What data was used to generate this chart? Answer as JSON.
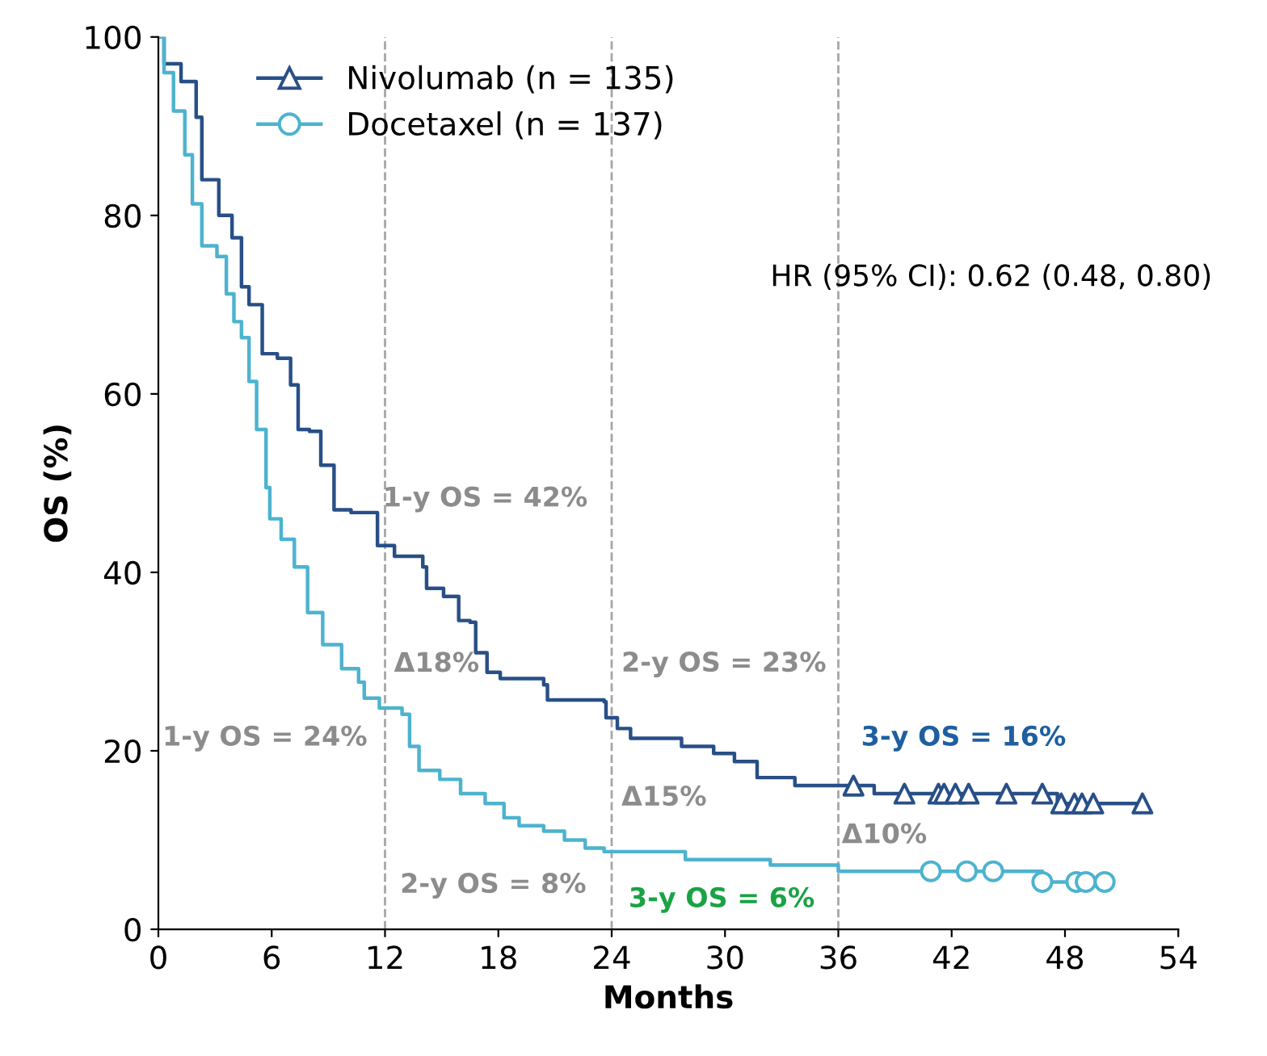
{
  "chart_data": {
    "type": "step",
    "xlabel": "Months",
    "ylabel": "OS (%)",
    "xlim": [
      0,
      54
    ],
    "xticks": [
      0,
      6,
      12,
      18,
      24,
      30,
      36,
      42,
      48,
      54
    ],
    "ylim": [
      0,
      100
    ],
    "yticks": [
      0,
      20,
      40,
      60,
      80,
      100
    ],
    "grid": false,
    "legend": "top left",
    "line_style": "solid",
    "series": [
      {
        "name": "Nivolumab (n = 135)",
        "color": "#284f87",
        "x": [
          0,
          0.3,
          1.2,
          2.0,
          2.3,
          3.2,
          3.9,
          4.4,
          4.8,
          5.5,
          6.3,
          7.0,
          7.4,
          8.0,
          8.6,
          9.3,
          10.2,
          11.6,
          12.5,
          14.0,
          14.2,
          15.1,
          15.9,
          16.5,
          16.8,
          17.4,
          18.1,
          20.4,
          20.6,
          23.6,
          23.7,
          24.3,
          25.0,
          27.7,
          29.4,
          30.5,
          31.7,
          33.7,
          37.9,
          47.6,
          52.2
        ],
        "values": [
          100,
          97,
          95,
          91,
          84,
          80,
          77.5,
          72,
          70,
          64.5,
          64,
          61,
          56,
          55.8,
          52,
          47,
          46.7,
          43,
          41.8,
          40.6,
          38.2,
          37.3,
          34.6,
          34.4,
          31,
          28.8,
          28.1,
          27.4,
          25.7,
          25.5,
          23.7,
          22.5,
          21.4,
          20.5,
          19.7,
          18.8,
          17,
          16.1,
          15.2,
          14.1,
          14.1
        ]
      },
      {
        "name": "Docetaxel (n = 137)",
        "color": "#4db3cf",
        "x": [
          0,
          0.3,
          0.8,
          1.4,
          1.8,
          2.3,
          3.1,
          3.6,
          4.0,
          4.4,
          4.8,
          5.2,
          5.7,
          5.9,
          6.5,
          7.2,
          7.9,
          8.7,
          9.7,
          10.6,
          10.9,
          11.7,
          12.9,
          13.3,
          13.8,
          14.9,
          16.0,
          17.3,
          18.3,
          19.1,
          20.4,
          21.5,
          22.6,
          23.6,
          27.9,
          32.4,
          36.0,
          46.8,
          50.3
        ],
        "values": [
          100,
          96,
          91.7,
          86.8,
          81.3,
          76.6,
          75.4,
          71.2,
          68.1,
          66.3,
          61.4,
          56,
          49.5,
          46,
          43.7,
          40.6,
          35.5,
          31.9,
          29.2,
          27.7,
          25.9,
          24.8,
          24.1,
          20.5,
          17.8,
          16.8,
          15.2,
          14.1,
          12.5,
          11.6,
          11,
          10,
          9.1,
          8.7,
          7.8,
          7.2,
          6.5,
          5.3,
          5.3
        ]
      },
      {
        "type": "scatter",
        "color": "#284f87",
        "marker": "triangle",
        "x": [
          36.8,
          39.5,
          41.3,
          41.6,
          42.2,
          42.9,
          44.9,
          46.8,
          47.8,
          48.5,
          48.9,
          49.5,
          52.1
        ],
        "values": [
          16.1,
          15.2,
          15.2,
          15.2,
          15.2,
          15.2,
          15.2,
          15.2,
          14.1,
          14.1,
          14.1,
          14.1,
          14.1
        ]
      },
      {
        "type": "scatter",
        "color": "#4db3cf",
        "marker": "circle",
        "x": [
          40.9,
          42.8,
          44.2,
          46.8,
          48.6,
          49.1,
          50.1
        ],
        "values": [
          6.5,
          6.5,
          6.5,
          5.3,
          5.3,
          5.3,
          5.3
        ]
      }
    ],
    "ref_lines": [
      {
        "axis": "x",
        "value": 12,
        "color": "#a6a6a6",
        "line_style": "dashed"
      },
      {
        "axis": "x",
        "value": 24,
        "color": "#a6a6a6",
        "line_style": "dashed"
      },
      {
        "axis": "x",
        "value": 36,
        "color": "#a6a6a6",
        "line_style": "dashed"
      }
    ],
    "annotations": [
      "HR (95% CI): 0.62 (0.48, 0.80)",
      "1-y OS = 42%",
      "Δ18%",
      "2-y OS = 23%",
      "3-y OS = 16%",
      "1-y OS = 24%",
      "Δ15%",
      "Δ10%",
      "2-y OS = 8%",
      "3-y OS = 6%"
    ]
  }
}
